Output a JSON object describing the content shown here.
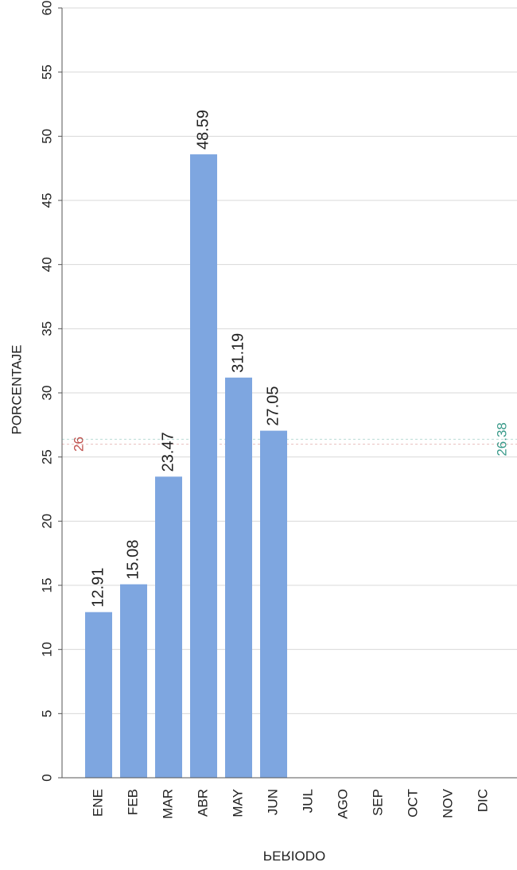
{
  "chart_data": {
    "type": "bar",
    "x_label": "PERIODO",
    "y_label": "PORCENTAJE",
    "categories": [
      "ENE",
      "FEB",
      "MAR",
      "ABR",
      "MAY",
      "JUN",
      "JUL",
      "AGO",
      "SEP",
      "OCT",
      "NOV",
      "DIC"
    ],
    "values": [
      12.91,
      15.08,
      23.47,
      48.59,
      31.19,
      27.05,
      null,
      null,
      null,
      null,
      null,
      null
    ],
    "color": "#7ea6e0",
    "ylim": [
      0,
      60
    ],
    "yticks": [
      0,
      5,
      10,
      15,
      20,
      25,
      30,
      35,
      40,
      45,
      50,
      55,
      60
    ],
    "grid": true,
    "reference_lines": [
      {
        "value": 26,
        "color": "#c0504d"
      },
      {
        "value": 26.38,
        "color": "#3a9a8a"
      }
    ]
  }
}
